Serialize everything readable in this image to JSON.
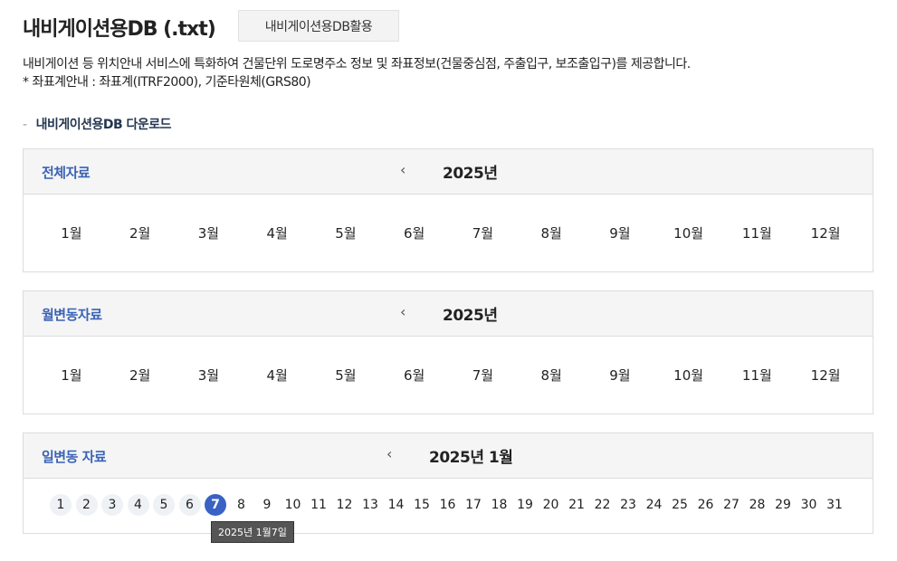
{
  "header": {
    "title": "내비게이션용DB (.txt)",
    "use_button": "내비게이션용DB활용"
  },
  "description": [
    "내비게이션 등 위치안내 서비스에 특화하여 건물단위 도로명주소 정보 및 좌표정보(건물중심점, 주출입구, 보조출입구)를 제공합니다.",
    "* 좌표계안내 : 좌표계(ITRF2000), 기준타원체(GRS80)"
  ],
  "section_title": "내비게이션용DB 다운로드",
  "section_dash": "-",
  "prev_icon": "‹",
  "months": [
    "1월",
    "2월",
    "3월",
    "4월",
    "5월",
    "6월",
    "7월",
    "8월",
    "9월",
    "10월",
    "11월",
    "12월"
  ],
  "panels": {
    "full": {
      "label": "전체자료",
      "year": "2025년"
    },
    "monthly": {
      "label": "월변동자료",
      "year": "2025년"
    },
    "daily": {
      "label": "일변동 자료",
      "period": "2025년 1월",
      "available_days": [
        1,
        2,
        3,
        4,
        5,
        6
      ],
      "selected_day": 7,
      "tooltip": "2025년 1월7일"
    }
  },
  "colors": {
    "accent": "#3a62c5"
  }
}
